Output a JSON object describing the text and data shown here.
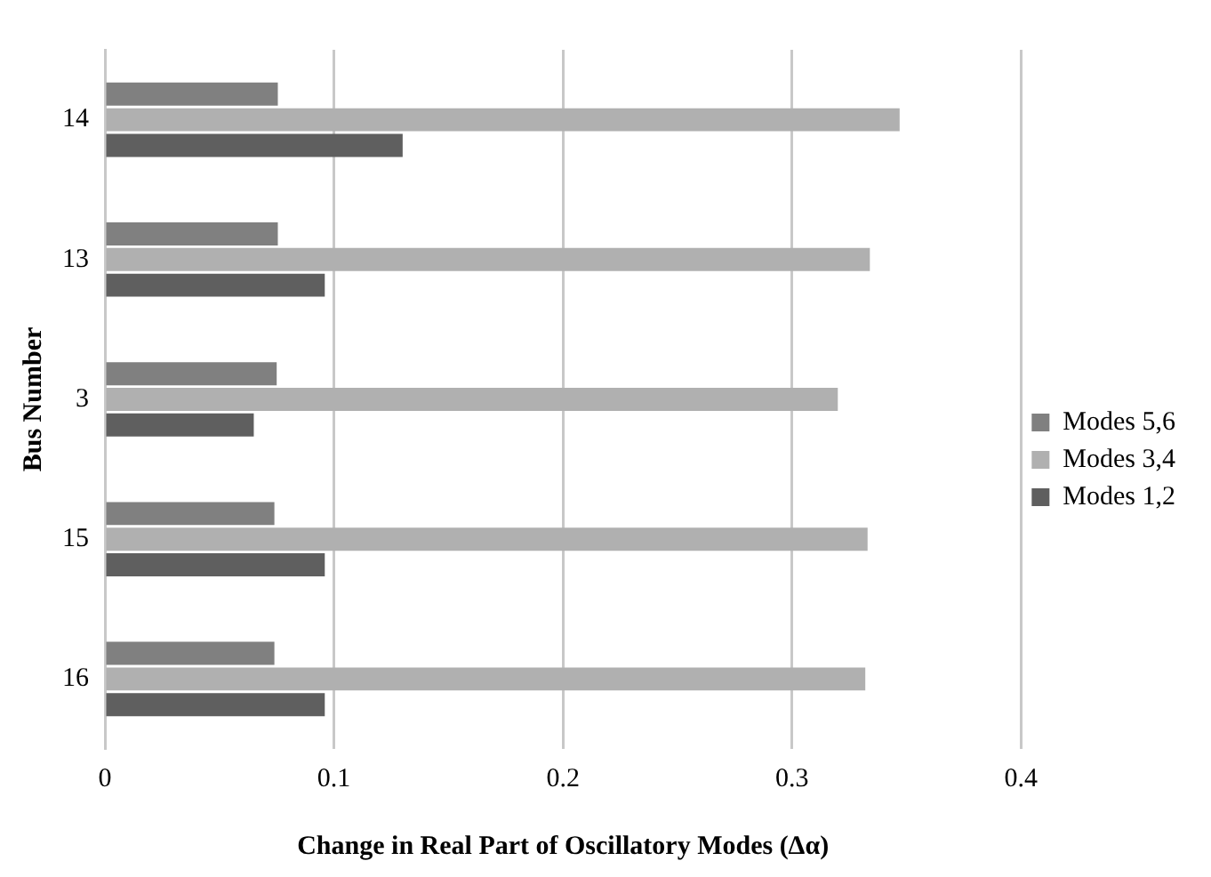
{
  "chart_data": {
    "type": "bar",
    "orientation": "horizontal",
    "xlabel": "Change in Real Part of Oscillatory Modes (Δα)",
    "ylabel": "Bus Number",
    "categories": [
      "14",
      "13",
      "3",
      "15",
      "16"
    ],
    "series": [
      {
        "name": "Modes 5,6",
        "color": "#808080",
        "values": [
          0.0755,
          0.0755,
          0.075,
          0.074,
          0.074
        ]
      },
      {
        "name": "Modes 3,4",
        "color": "#b0b0b0",
        "values": [
          0.347,
          0.334,
          0.32,
          0.333,
          0.332
        ]
      },
      {
        "name": "Modes 1,2",
        "color": "#5f5f5f",
        "values": [
          0.13,
          0.096,
          0.065,
          0.096,
          0.096
        ]
      }
    ],
    "xlim": [
      0,
      0.4
    ],
    "xticks": [
      0,
      0.1,
      0.2,
      0.3,
      0.4
    ],
    "grid": "x",
    "legend": "right"
  }
}
